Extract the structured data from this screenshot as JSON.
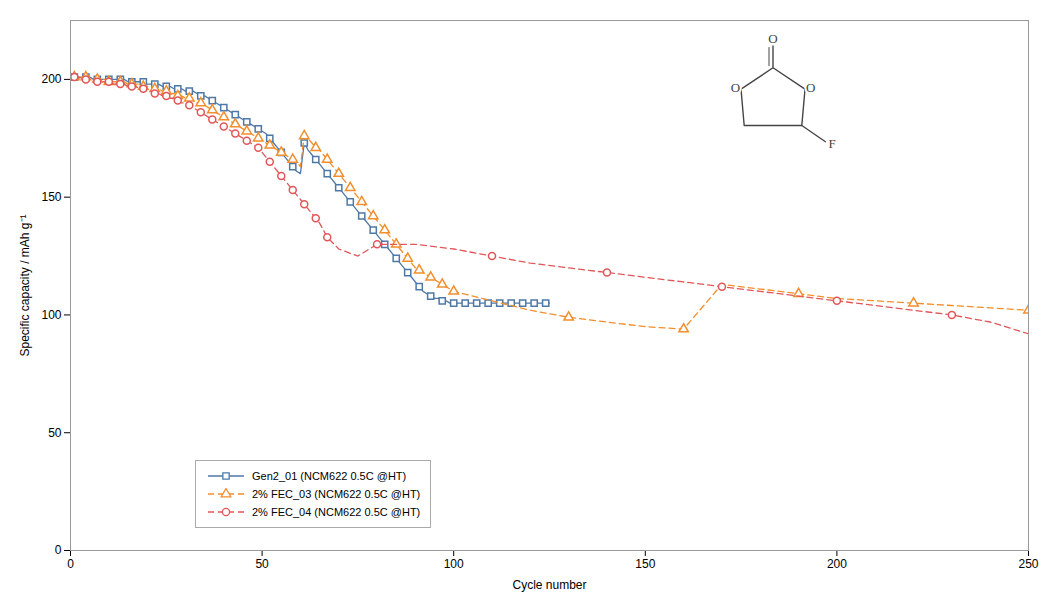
{
  "chart_data": {
    "type": "line",
    "xlabel": "Cycle number",
    "ylabel": "Specific capacity / mAh g⁻¹",
    "xlim": [
      0,
      250
    ],
    "ylim": [
      0,
      225
    ],
    "xticks": [
      0,
      50,
      100,
      150,
      200,
      250
    ],
    "yticks": [
      0,
      50,
      100,
      150,
      200
    ],
    "grid": false,
    "legend": "lower left",
    "annotations": [
      "O",
      "O",
      "O",
      "F"
    ],
    "series": [
      {
        "name": "Gen2_01 (NCM622 0.5C @HT)",
        "marker": "square",
        "line_style": "solid",
        "x": [
          1,
          2,
          3,
          4,
          5,
          6,
          7,
          8,
          9,
          10,
          11,
          12,
          13,
          14,
          15,
          16,
          17,
          18,
          19,
          20,
          21,
          22,
          23,
          24,
          25,
          26,
          27,
          28,
          29,
          30,
          31,
          32,
          33,
          34,
          35,
          36,
          37,
          38,
          39,
          40,
          41,
          42,
          43,
          44,
          45,
          46,
          47,
          48,
          49,
          50,
          51,
          52,
          53,
          54,
          55,
          56,
          57,
          58,
          59,
          60,
          61,
          62,
          63,
          64,
          65,
          66,
          67,
          68,
          69,
          70,
          71,
          72,
          73,
          74,
          75,
          76,
          77,
          78,
          79,
          80,
          81,
          82,
          83,
          84,
          85,
          86,
          87,
          88,
          89,
          90,
          91,
          92,
          93,
          94,
          95,
          96,
          97,
          98,
          99,
          100,
          101,
          102,
          103,
          104,
          105,
          106,
          107,
          108,
          109,
          110,
          111,
          112,
          113,
          114,
          115,
          116,
          117,
          118,
          119,
          120,
          121,
          122,
          123,
          124,
          125
        ],
        "values": [
          201,
          201,
          201,
          201,
          201,
          200,
          200,
          200,
          200,
          200,
          200,
          200,
          200,
          200,
          199,
          199,
          199,
          199,
          199,
          198,
          198,
          198,
          198,
          197,
          197,
          197,
          196,
          196,
          196,
          195,
          195,
          195,
          194,
          193,
          193,
          192,
          191,
          190,
          189,
          188,
          187,
          186,
          185,
          184,
          183,
          182,
          181,
          180,
          179,
          178,
          177,
          175,
          173,
          171,
          169,
          167,
          165,
          163,
          161,
          160,
          173,
          170,
          168,
          166,
          164,
          162,
          160,
          158,
          156,
          154,
          152,
          150,
          148,
          146,
          144,
          142,
          140,
          138,
          136,
          134,
          132,
          130,
          128,
          126,
          124,
          122,
          120,
          118,
          116,
          114,
          112,
          110,
          109,
          108,
          107,
          107,
          106,
          106,
          105,
          105,
          105,
          105,
          105,
          105,
          105,
          105,
          105,
          105,
          105,
          105,
          105,
          105,
          105,
          105,
          105,
          105,
          105,
          105,
          105,
          105,
          105,
          105,
          105,
          105,
          105
        ]
      },
      {
        "name": "2% FEC_03 (NCM622 0.5C @HT)",
        "marker": "triangle",
        "line_style": "dashed",
        "x": [
          1,
          2,
          3,
          4,
          5,
          6,
          7,
          8,
          9,
          10,
          11,
          12,
          13,
          14,
          15,
          16,
          17,
          18,
          19,
          20,
          21,
          22,
          23,
          24,
          25,
          26,
          27,
          28,
          29,
          30,
          31,
          32,
          33,
          34,
          35,
          36,
          37,
          38,
          39,
          40,
          41,
          42,
          43,
          44,
          45,
          46,
          47,
          48,
          49,
          50,
          51,
          52,
          53,
          54,
          55,
          56,
          57,
          58,
          59,
          60,
          61,
          62,
          63,
          64,
          65,
          66,
          67,
          68,
          69,
          70,
          71,
          72,
          73,
          74,
          75,
          76,
          77,
          78,
          79,
          80,
          81,
          82,
          83,
          84,
          85,
          86,
          87,
          88,
          89,
          90,
          91,
          92,
          93,
          94,
          95,
          96,
          97,
          98,
          99,
          100,
          110,
          120,
          130,
          140,
          150,
          160,
          170,
          180,
          190,
          200,
          210,
          220,
          230,
          240,
          250
        ],
        "values": [
          201,
          201,
          201,
          201,
          200,
          200,
          200,
          200,
          200,
          199,
          199,
          199,
          199,
          199,
          198,
          198,
          198,
          198,
          197,
          197,
          197,
          196,
          196,
          195,
          195,
          194,
          194,
          193,
          193,
          192,
          192,
          191,
          190,
          190,
          189,
          188,
          187,
          186,
          185,
          184,
          183,
          182,
          181,
          180,
          179,
          178,
          177,
          176,
          175,
          174,
          173,
          172,
          171,
          170,
          169,
          168,
          167,
          166,
          165,
          163,
          176,
          175,
          173,
          171,
          170,
          168,
          166,
          164,
          162,
          160,
          158,
          156,
          154,
          152,
          150,
          148,
          146,
          144,
          142,
          140,
          138,
          136,
          134,
          132,
          130,
          128,
          126,
          124,
          122,
          120,
          119,
          118,
          117,
          116,
          115,
          114,
          113,
          112,
          111,
          110,
          106,
          102,
          99,
          97,
          95,
          94,
          113,
          111,
          109,
          107,
          106,
          105,
          104,
          103,
          102
        ]
      },
      {
        "name": "2% FEC_04 (NCM622 0.5C @HT)",
        "marker": "circle",
        "line_style": "dashed",
        "x": [
          1,
          2,
          3,
          4,
          5,
          6,
          7,
          8,
          9,
          10,
          11,
          12,
          13,
          14,
          15,
          16,
          17,
          18,
          19,
          20,
          21,
          22,
          23,
          24,
          25,
          26,
          27,
          28,
          29,
          30,
          31,
          32,
          33,
          34,
          35,
          36,
          37,
          38,
          39,
          40,
          41,
          42,
          43,
          44,
          45,
          46,
          47,
          48,
          49,
          50,
          51,
          52,
          53,
          54,
          55,
          56,
          57,
          58,
          59,
          60,
          61,
          62,
          63,
          64,
          65,
          66,
          67,
          70,
          75,
          80,
          90,
          100,
          110,
          120,
          130,
          140,
          150,
          160,
          170,
          180,
          190,
          200,
          210,
          220,
          230,
          240,
          250
        ],
        "values": [
          201,
          201,
          200,
          200,
          200,
          200,
          199,
          199,
          199,
          199,
          198,
          198,
          198,
          198,
          197,
          197,
          197,
          196,
          196,
          195,
          195,
          194,
          194,
          193,
          193,
          192,
          192,
          191,
          190,
          190,
          189,
          188,
          187,
          186,
          185,
          184,
          183,
          182,
          181,
          180,
          179,
          178,
          177,
          176,
          175,
          174,
          173,
          172,
          171,
          169,
          167,
          165,
          163,
          161,
          159,
          157,
          155,
          153,
          151,
          149,
          147,
          145,
          143,
          141,
          139,
          136,
          133,
          128,
          125,
          130,
          130,
          128,
          125,
          122,
          120,
          118,
          116,
          114,
          112,
          110,
          108,
          106,
          104,
          102,
          100,
          97,
          92
        ]
      }
    ]
  }
}
